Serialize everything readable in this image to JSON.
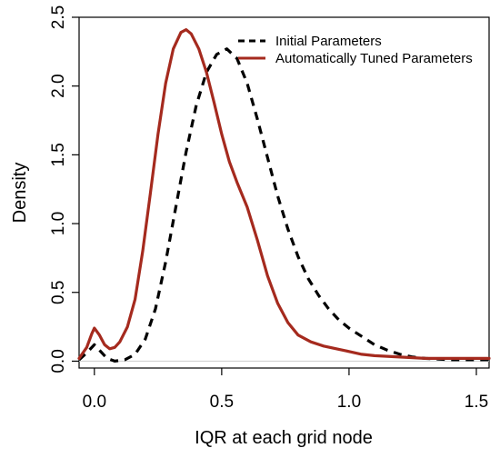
{
  "chart_data": {
    "type": "line",
    "title": "",
    "xlabel": "IQR at each grid node",
    "ylabel": "Density",
    "xlim": [
      -0.06,
      1.55
    ],
    "ylim": [
      -0.05,
      2.5
    ],
    "x_ticks": [
      0.0,
      0.5,
      1.0,
      1.5
    ],
    "x_tick_labels": [
      "0.0",
      "0.5",
      "1.0",
      "1.5"
    ],
    "y_ticks": [
      0.0,
      0.5,
      1.0,
      1.5,
      2.0,
      2.5
    ],
    "y_tick_labels": [
      "0.0",
      "0.5",
      "1.0",
      "1.5",
      "2.0",
      "2.5"
    ],
    "legend_position": "top-right",
    "grid": false,
    "series": [
      {
        "name": "Initial Parameters",
        "style": "dashed",
        "color": "#000000",
        "points": [
          [
            -0.06,
            0.01
          ],
          [
            -0.03,
            0.06
          ],
          [
            0.0,
            0.12
          ],
          [
            0.02,
            0.08
          ],
          [
            0.05,
            0.02
          ],
          [
            0.08,
            0.0
          ],
          [
            0.12,
            0.01
          ],
          [
            0.16,
            0.05
          ],
          [
            0.2,
            0.16
          ],
          [
            0.24,
            0.38
          ],
          [
            0.28,
            0.72
          ],
          [
            0.32,
            1.12
          ],
          [
            0.36,
            1.52
          ],
          [
            0.4,
            1.86
          ],
          [
            0.44,
            2.1
          ],
          [
            0.48,
            2.23
          ],
          [
            0.52,
            2.27
          ],
          [
            0.56,
            2.2
          ],
          [
            0.6,
            2.02
          ],
          [
            0.64,
            1.76
          ],
          [
            0.68,
            1.48
          ],
          [
            0.72,
            1.2
          ],
          [
            0.76,
            0.96
          ],
          [
            0.8,
            0.76
          ],
          [
            0.84,
            0.6
          ],
          [
            0.88,
            0.48
          ],
          [
            0.92,
            0.38
          ],
          [
            0.96,
            0.3
          ],
          [
            1.0,
            0.24
          ],
          [
            1.05,
            0.18
          ],
          [
            1.1,
            0.12
          ],
          [
            1.15,
            0.08
          ],
          [
            1.2,
            0.05
          ],
          [
            1.25,
            0.03
          ],
          [
            1.3,
            0.02
          ],
          [
            1.4,
            0.01
          ],
          [
            1.5,
            0.01
          ],
          [
            1.55,
            0.01
          ]
        ]
      },
      {
        "name": "Automatically Tuned Parameters",
        "style": "solid",
        "color": "#a52a1e",
        "points": [
          [
            -0.06,
            0.02
          ],
          [
            -0.03,
            0.1
          ],
          [
            -0.01,
            0.2
          ],
          [
            0.0,
            0.24
          ],
          [
            0.02,
            0.19
          ],
          [
            0.04,
            0.12
          ],
          [
            0.06,
            0.09
          ],
          [
            0.08,
            0.1
          ],
          [
            0.1,
            0.14
          ],
          [
            0.13,
            0.25
          ],
          [
            0.16,
            0.45
          ],
          [
            0.19,
            0.8
          ],
          [
            0.22,
            1.22
          ],
          [
            0.25,
            1.65
          ],
          [
            0.28,
            2.02
          ],
          [
            0.31,
            2.27
          ],
          [
            0.34,
            2.39
          ],
          [
            0.36,
            2.41
          ],
          [
            0.38,
            2.38
          ],
          [
            0.41,
            2.27
          ],
          [
            0.44,
            2.1
          ],
          [
            0.47,
            1.88
          ],
          [
            0.5,
            1.65
          ],
          [
            0.53,
            1.45
          ],
          [
            0.56,
            1.3
          ],
          [
            0.6,
            1.12
          ],
          [
            0.64,
            0.88
          ],
          [
            0.68,
            0.62
          ],
          [
            0.72,
            0.42
          ],
          [
            0.76,
            0.28
          ],
          [
            0.8,
            0.19
          ],
          [
            0.85,
            0.14
          ],
          [
            0.9,
            0.11
          ],
          [
            0.95,
            0.09
          ],
          [
            1.0,
            0.07
          ],
          [
            1.05,
            0.05
          ],
          [
            1.1,
            0.04
          ],
          [
            1.2,
            0.03
          ],
          [
            1.3,
            0.02
          ],
          [
            1.4,
            0.02
          ],
          [
            1.55,
            0.02
          ]
        ]
      }
    ]
  }
}
